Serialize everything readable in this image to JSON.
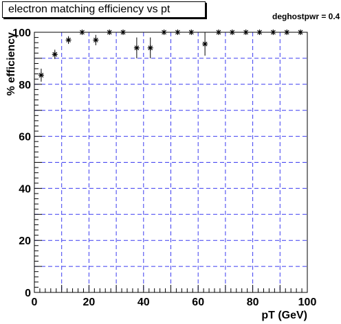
{
  "title": "electron matching efficiency vs pt",
  "stat_label": "deghostpwr = 0.4",
  "chart_data": {
    "type": "scatter",
    "xlabel": "pT (GeV)",
    "ylabel": "% efficiency",
    "xlim": [
      0,
      100
    ],
    "ylim": [
      0,
      100
    ],
    "xticks": [
      0,
      20,
      40,
      60,
      80,
      100
    ],
    "yticks": [
      0,
      20,
      40,
      60,
      80,
      100
    ],
    "grid": true,
    "grid_color": "#3a3af0",
    "marker": "star",
    "points": [
      {
        "x": 2.5,
        "y": 83.5,
        "err": 2.5
      },
      {
        "x": 7.5,
        "y": 91.5,
        "err": 1.8
      },
      {
        "x": 12.5,
        "y": 97,
        "err": 1.5
      },
      {
        "x": 17.5,
        "y": 100,
        "err": 0
      },
      {
        "x": 22.5,
        "y": 97,
        "err": 2.0
      },
      {
        "x": 27.5,
        "y": 100,
        "err": 0
      },
      {
        "x": 32.5,
        "y": 100,
        "err": 0
      },
      {
        "x": 37.5,
        "y": 94,
        "err": 4.0
      },
      {
        "x": 42.5,
        "y": 94,
        "err": 4.0
      },
      {
        "x": 47.5,
        "y": 100,
        "err": 0
      },
      {
        "x": 52.5,
        "y": 100,
        "err": 0
      },
      {
        "x": 57.5,
        "y": 100,
        "err": 0
      },
      {
        "x": 62.5,
        "y": 95.5,
        "err": 4.5
      },
      {
        "x": 67.5,
        "y": 100,
        "err": 0
      },
      {
        "x": 72.5,
        "y": 100,
        "err": 0
      },
      {
        "x": 77.5,
        "y": 100,
        "err": 0
      },
      {
        "x": 82.5,
        "y": 100,
        "err": 0
      },
      {
        "x": 87.5,
        "y": 100,
        "err": 0
      },
      {
        "x": 92.5,
        "y": 100,
        "err": 0
      },
      {
        "x": 97.5,
        "y": 100,
        "err": 0
      }
    ]
  }
}
